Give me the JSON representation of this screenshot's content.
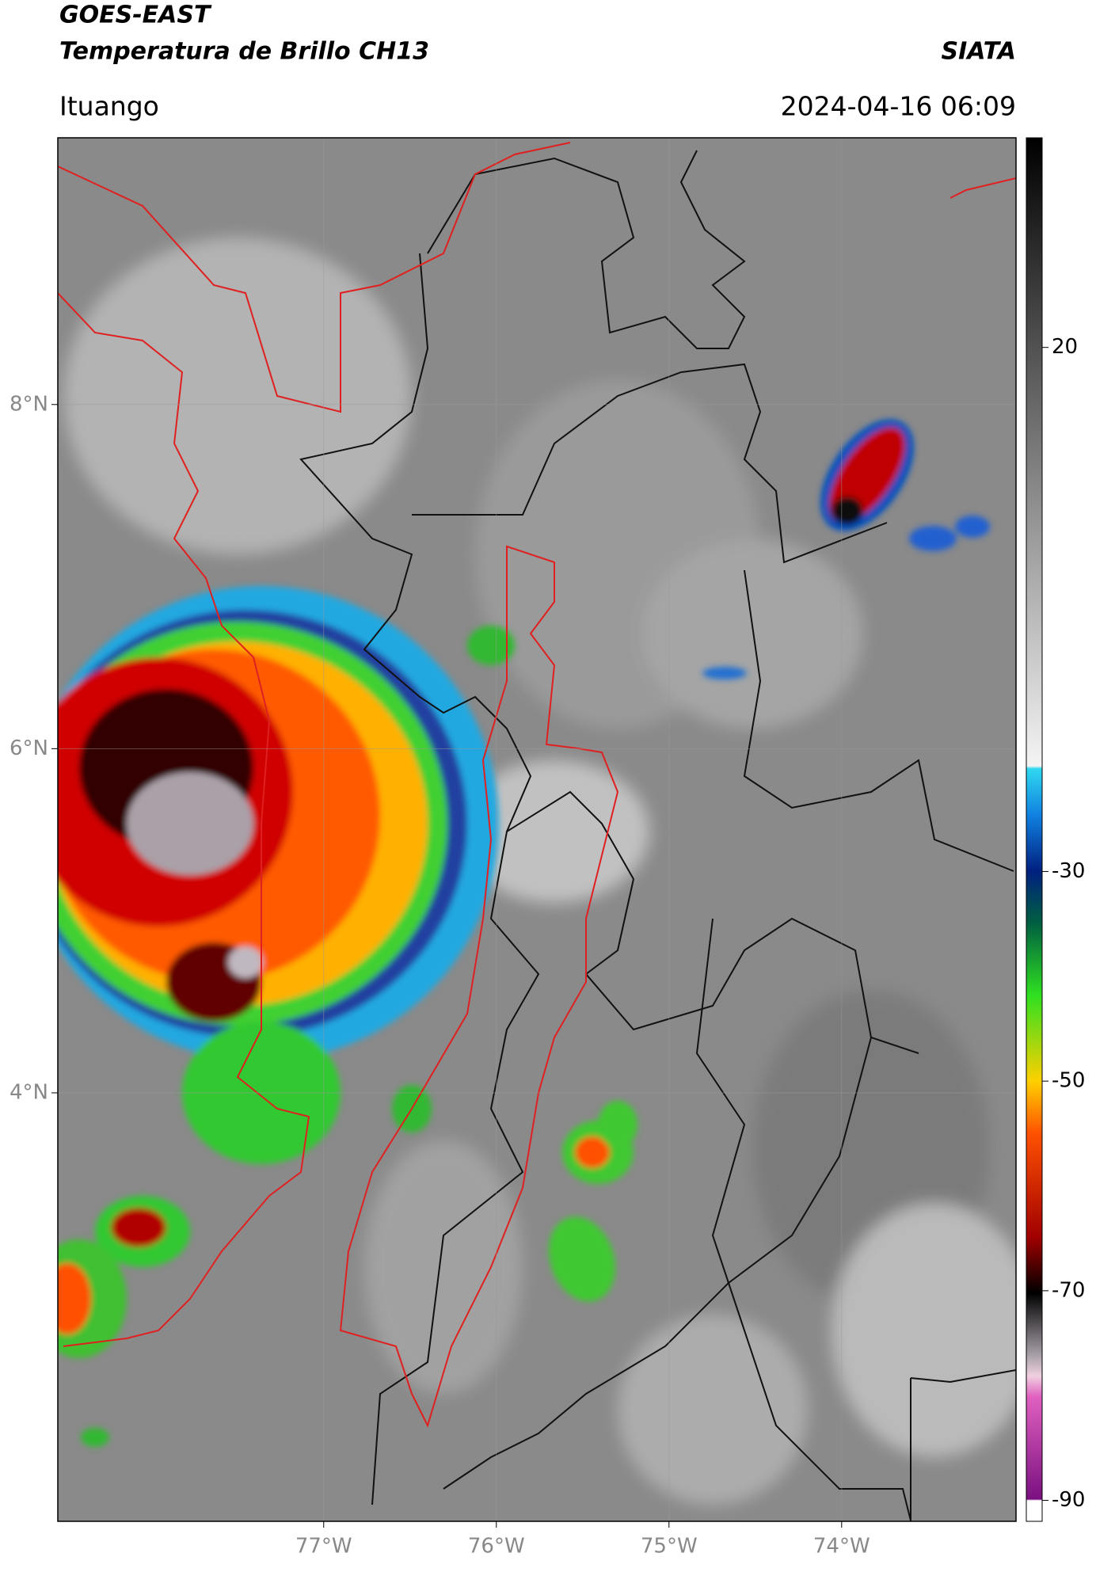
{
  "header": {
    "title_line1": "GOES-EAST",
    "title_line2": "Temperatura de Brillo CH13",
    "source": "SIATA",
    "location": "Ituango",
    "datetime": "2024-04-16 06:09"
  },
  "map": {
    "lon_range": [
      -78.54,
      -72.99
    ],
    "lat_range": [
      1.51,
      9.55
    ],
    "lon_ticks": [
      {
        "value": -77,
        "label": "77°W"
      },
      {
        "value": -76,
        "label": "76°W"
      },
      {
        "value": -75,
        "label": "75°W"
      },
      {
        "value": -74,
        "label": "74°W"
      }
    ],
    "lat_ticks": [
      {
        "value": 8,
        "label": "8°N"
      },
      {
        "value": 6,
        "label": "6°N"
      },
      {
        "value": 4,
        "label": "4°N"
      }
    ],
    "grid": true
  },
  "colorbar": {
    "range": [
      -92,
      40
    ],
    "ticks": [
      20,
      -30,
      -50,
      -70,
      -90
    ]
  }
}
